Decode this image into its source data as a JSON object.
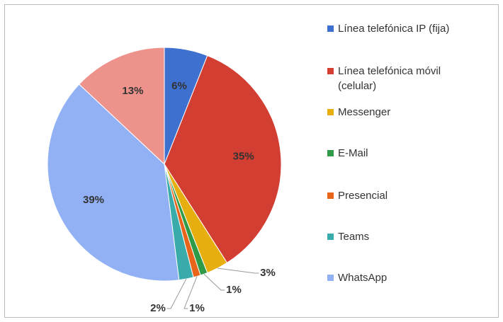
{
  "chart_data": {
    "type": "pie",
    "categories": [
      "Línea telefónica  IP (fija)",
      "Línea telefónica móvil (celular)",
      "Messenger",
      "E-Mail",
      "Presencial",
      "Teams",
      "WhatsApp",
      null
    ],
    "values": [
      6,
      35,
      3,
      1,
      1,
      2,
      39,
      13
    ],
    "value_labels": [
      "6%",
      "35%",
      "3%",
      "1%",
      "1%",
      "2%",
      "39%",
      "13%"
    ],
    "colors": [
      "#3e70cf",
      "#d23e31",
      "#e6ae0e",
      "#2f9a47",
      "#e8641b",
      "#3aabab",
      "#91b1f4",
      "#ee938b"
    ],
    "legend": "right"
  }
}
